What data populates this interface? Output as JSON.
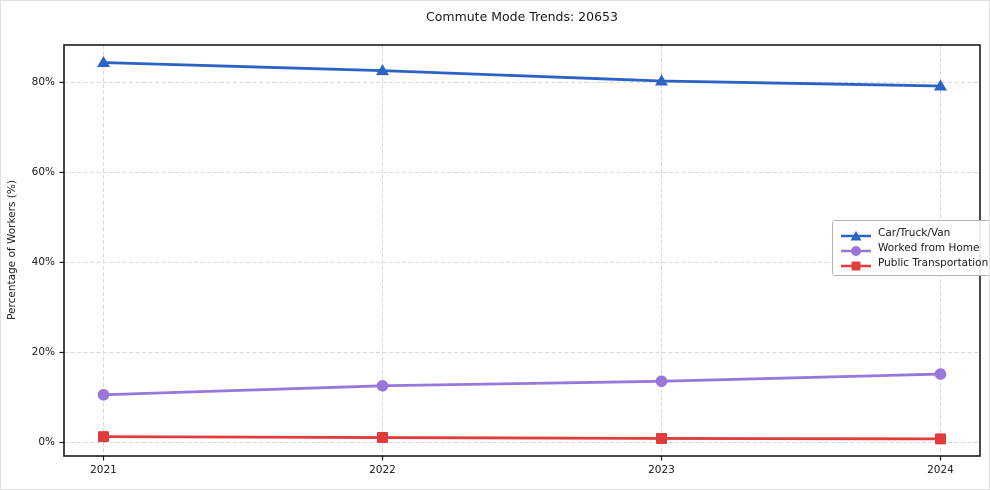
{
  "chart_data": {
    "type": "line",
    "title": "Commute Mode Trends: 20653",
    "xlabel": "",
    "ylabel": "Percentage of Workers (%)",
    "categories": [
      "2021",
      "2022",
      "2023",
      "2024"
    ],
    "yticks": [
      "0%",
      "20%",
      "40%",
      "60%",
      "80%"
    ],
    "ytick_values": [
      0,
      20,
      40,
      60,
      80
    ],
    "ylim": [
      -3,
      88.3
    ],
    "grid": true,
    "grid_style": "dashed",
    "legend_position": "center right",
    "series": [
      {
        "name": "Car/Truck/Van",
        "marker": "triangle",
        "color": "#2b63c5",
        "values": [
          84.4,
          82.6,
          80.3,
          79.2
        ]
      },
      {
        "name": "Worked from Home",
        "marker": "circle",
        "color": "#9777d9",
        "values": [
          10.6,
          12.6,
          13.6,
          15.2
        ]
      },
      {
        "name": "Public Transportation",
        "marker": "square",
        "color": "#e03c3c",
        "values": [
          1.3,
          1.1,
          0.9,
          0.8
        ]
      }
    ],
    "colors": {
      "gridline": "#d7d7d7",
      "spine": "#1a1a1a",
      "text": "#1a1a1a",
      "background": "#ffffff"
    }
  }
}
